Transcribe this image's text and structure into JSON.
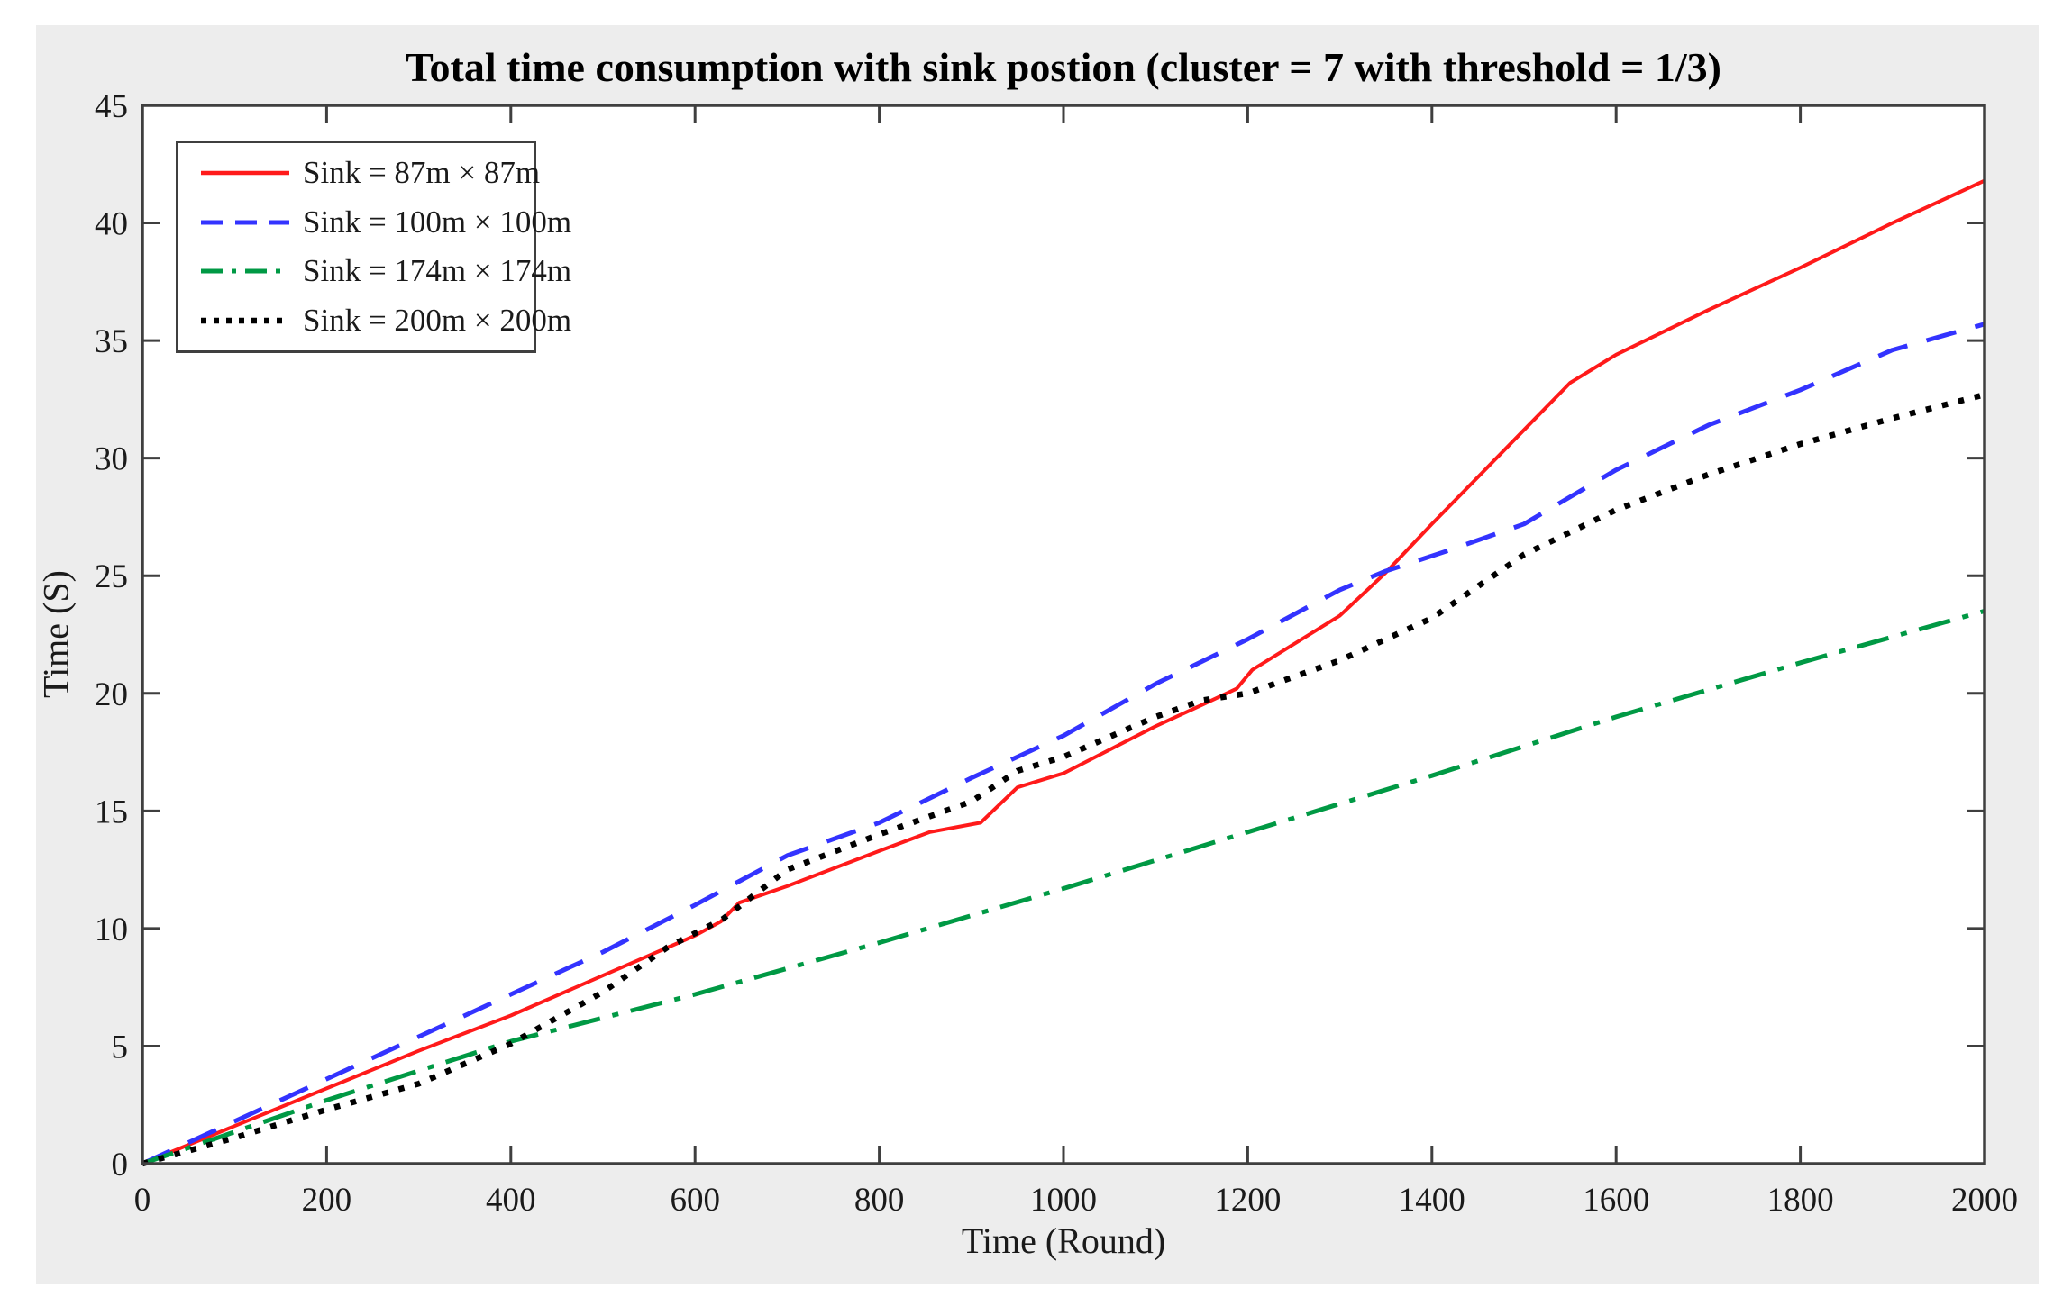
{
  "figure": {
    "background_color": "#ededed",
    "plot_background": "#ffffff",
    "axis_color": "#3f3f3f",
    "text_color": "#1a1a1a"
  },
  "chart_data": {
    "type": "line",
    "title": "Total time consumption with sink postion (cluster = 7 with threshold = 1/3)",
    "xlabel": "Time (Round)",
    "ylabel": "Time (S)",
    "xlim": [
      0,
      2000
    ],
    "ylim": [
      0,
      45
    ],
    "xticks": [
      0,
      200,
      400,
      600,
      800,
      1000,
      1200,
      1400,
      1600,
      1800,
      2000
    ],
    "yticks": [
      0,
      5,
      10,
      15,
      20,
      25,
      30,
      35,
      40,
      45
    ],
    "grid": false,
    "legend_position": "top-left",
    "series": [
      {
        "name": "Sink = 87m × 87m",
        "color": "#ff1a1a",
        "style": "solid",
        "line_width": 4,
        "points": [
          [
            0,
            0
          ],
          [
            100,
            1.6
          ],
          [
            200,
            3.2
          ],
          [
            300,
            4.8
          ],
          [
            400,
            6.3
          ],
          [
            500,
            8.0
          ],
          [
            600,
            9.7
          ],
          [
            628,
            10.3
          ],
          [
            648,
            11.1
          ],
          [
            700,
            11.8
          ],
          [
            800,
            13.3
          ],
          [
            855,
            14.1
          ],
          [
            910,
            14.5
          ],
          [
            950,
            16.0
          ],
          [
            1000,
            16.6
          ],
          [
            1100,
            18.6
          ],
          [
            1150,
            19.5
          ],
          [
            1188,
            20.2
          ],
          [
            1205,
            21.0
          ],
          [
            1300,
            23.3
          ],
          [
            1349,
            25.1
          ],
          [
            1400,
            27.2
          ],
          [
            1450,
            29.2
          ],
          [
            1500,
            31.2
          ],
          [
            1550,
            33.2
          ],
          [
            1600,
            34.4
          ],
          [
            1700,
            36.3
          ],
          [
            1800,
            38.1
          ],
          [
            1900,
            40.0
          ],
          [
            2000,
            41.8
          ]
        ]
      },
      {
        "name": "Sink = 100m × 100m",
        "color": "#3333ff",
        "style": "dashed",
        "line_width": 5,
        "points": [
          [
            0,
            0
          ],
          [
            100,
            1.8
          ],
          [
            200,
            3.6
          ],
          [
            300,
            5.4
          ],
          [
            400,
            7.2
          ],
          [
            500,
            9.0
          ],
          [
            600,
            11.0
          ],
          [
            700,
            13.1
          ],
          [
            800,
            14.5
          ],
          [
            900,
            16.4
          ],
          [
            1000,
            18.2
          ],
          [
            1100,
            20.4
          ],
          [
            1200,
            22.3
          ],
          [
            1300,
            24.4
          ],
          [
            1350,
            25.2
          ],
          [
            1420,
            26.1
          ],
          [
            1500,
            27.2
          ],
          [
            1600,
            29.5
          ],
          [
            1700,
            31.4
          ],
          [
            1800,
            32.9
          ],
          [
            1900,
            34.6
          ],
          [
            2000,
            35.7
          ]
        ]
      },
      {
        "name": "Sink = 174m × 174m",
        "color": "#009944",
        "style": "dashdot",
        "line_width": 5,
        "points": [
          [
            0,
            0
          ],
          [
            200,
            2.7
          ],
          [
            400,
            5.2
          ],
          [
            600,
            7.2
          ],
          [
            800,
            9.4
          ],
          [
            1000,
            11.7
          ],
          [
            1200,
            14.1
          ],
          [
            1400,
            16.5
          ],
          [
            1600,
            19.0
          ],
          [
            1800,
            21.3
          ],
          [
            2000,
            23.5
          ]
        ]
      },
      {
        "name": "Sink = 200m × 200m",
        "color": "#000000",
        "style": "dotted",
        "line_width": 6.5,
        "points": [
          [
            0,
            0
          ],
          [
            100,
            1.1
          ],
          [
            200,
            2.3
          ],
          [
            300,
            3.4
          ],
          [
            400,
            5.1
          ],
          [
            500,
            7.3
          ],
          [
            570,
            9.2
          ],
          [
            630,
            10.4
          ],
          [
            700,
            12.5
          ],
          [
            800,
            14.0
          ],
          [
            900,
            15.4
          ],
          [
            950,
            16.7
          ],
          [
            1000,
            17.3
          ],
          [
            1100,
            19.0
          ],
          [
            1150,
            19.7
          ],
          [
            1200,
            20.0
          ],
          [
            1250,
            20.7
          ],
          [
            1300,
            21.4
          ],
          [
            1400,
            23.2
          ],
          [
            1500,
            25.9
          ],
          [
            1600,
            27.8
          ],
          [
            1700,
            29.3
          ],
          [
            1800,
            30.6
          ],
          [
            1900,
            31.7
          ],
          [
            2000,
            32.7
          ]
        ]
      }
    ]
  }
}
